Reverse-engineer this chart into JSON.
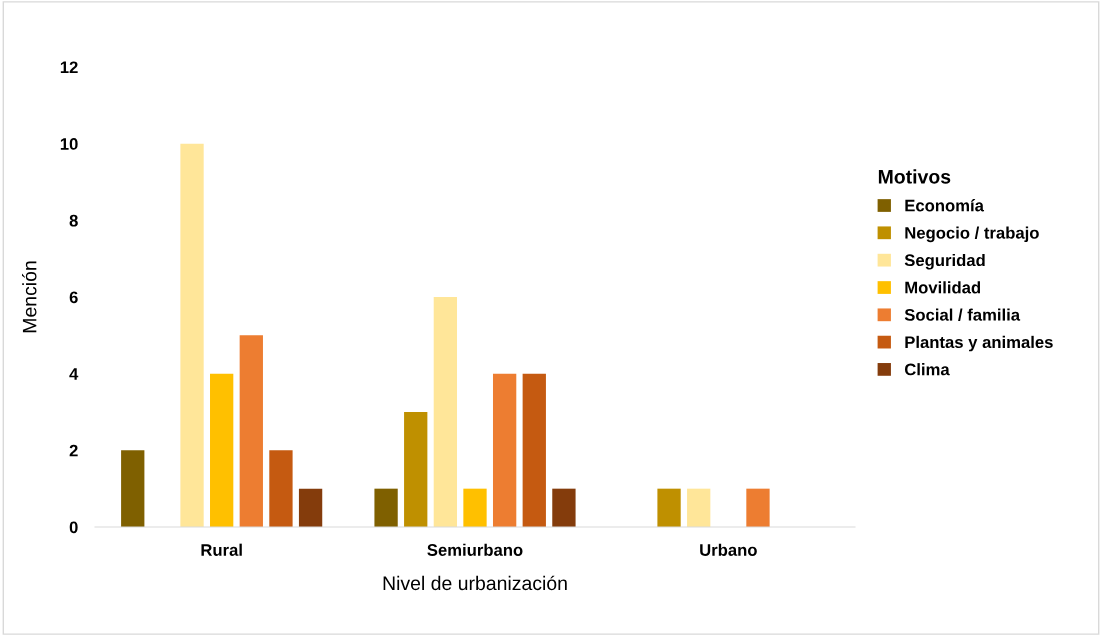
{
  "chart_data": {
    "type": "bar",
    "xlabel": "Nivel de urbanización",
    "ylabel": "Mención",
    "legend_title": "Motivos",
    "categories": [
      "Rural",
      "Semiurbano",
      "Urbano"
    ],
    "series": [
      {
        "name": "Economía",
        "color": "#7f6000",
        "values": [
          2,
          1,
          0
        ]
      },
      {
        "name": "Negocio / trabajo",
        "color": "#bf9000",
        "values": [
          0,
          3,
          1
        ]
      },
      {
        "name": "Seguridad",
        "color": "#ffe699",
        "values": [
          10,
          6,
          1
        ]
      },
      {
        "name": "Movilidad",
        "color": "#ffc000",
        "values": [
          4,
          1,
          0
        ]
      },
      {
        "name": "Social / familia",
        "color": "#ed7d31",
        "values": [
          5,
          4,
          1
        ]
      },
      {
        "name": "Plantas y animales",
        "color": "#c55a11",
        "values": [
          2,
          4,
          0
        ]
      },
      {
        "name": "Clima",
        "color": "#843c0c",
        "values": [
          1,
          1,
          0
        ]
      }
    ],
    "ylim": [
      0,
      12
    ],
    "yticks": [
      0,
      2,
      4,
      6,
      8,
      10,
      12
    ],
    "grid": false,
    "legend": "right"
  }
}
